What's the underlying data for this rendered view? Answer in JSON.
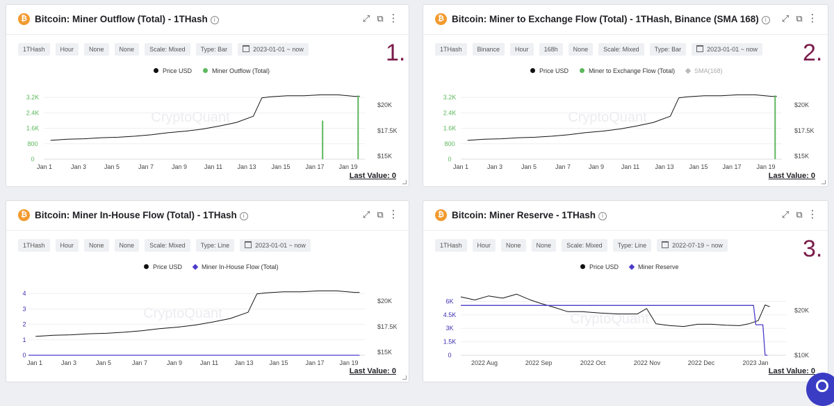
{
  "panels": [
    {
      "title": "Bitcoin: Miner Outflow (Total) - 1THash",
      "chips": [
        "1THash",
        "Hour",
        "None",
        "None",
        "Scale: Mixed",
        "Type: Bar"
      ],
      "date_chip": "2023-01-01 ~ now",
      "number_label": "1.",
      "legend": [
        {
          "label": "Price USD",
          "color": "#111111",
          "marker": "dot"
        },
        {
          "label": "Miner Outflow (Total)",
          "color": "#5cb85c",
          "marker": "dot"
        }
      ],
      "last_value": "Last Value: 0"
    },
    {
      "title": "Bitcoin: Miner to Exchange Flow (Total) - 1THash, Binance (SMA 168)",
      "chips": [
        "1THash",
        "Binance",
        "Hour",
        "168h",
        "None",
        "Scale: Mixed",
        "Type: Bar"
      ],
      "date_chip": "2023-01-01 ~ now",
      "number_label": "2.",
      "legend": [
        {
          "label": "Price USD",
          "color": "#111111",
          "marker": "dot"
        },
        {
          "label": "Miner to Exchange Flow (Total)",
          "color": "#5cb85c",
          "marker": "dot"
        },
        {
          "label": "SMA(168)",
          "color": "#bbbbbb",
          "marker": "diamond"
        }
      ],
      "last_value": "Last Value: 0"
    },
    {
      "title": "Bitcoin: Miner In-House Flow (Total) - 1THash",
      "chips": [
        "1THash",
        "Hour",
        "None",
        "None",
        "Scale: Mixed",
        "Type: Line"
      ],
      "date_chip": "2023-01-01 ~ now",
      "number_label": "",
      "legend": [
        {
          "label": "Price USD",
          "color": "#111111",
          "marker": "dot"
        },
        {
          "label": "Miner In-House Flow (Total)",
          "color": "#4b3bc9",
          "marker": "diamond"
        }
      ],
      "last_value": "Last Value: 0"
    },
    {
      "title": "Bitcoin: Miner Reserve - 1THash",
      "chips": [
        "1THash",
        "Hour",
        "None",
        "None",
        "Scale: Mixed",
        "Type: Line"
      ],
      "date_chip": "2022-07-19 ~ now",
      "number_label": "3.",
      "legend": [
        {
          "label": "Price USD",
          "color": "#111111",
          "marker": "dot"
        },
        {
          "label": "Miner Reserve",
          "color": "#4b3bc9",
          "marker": "diamond"
        }
      ],
      "last_value": "Last Value: 0"
    }
  ],
  "watermark": "CryptoQuant",
  "chart_data": [
    {
      "type": "bar",
      "x_ticks": [
        "Jan 1",
        "Jan 3",
        "Jan 5",
        "Jan 7",
        "Jan 9",
        "Jan 11",
        "Jan 13",
        "Jan 15",
        "Jan 17",
        "Jan 19"
      ],
      "y_left_ticks": [
        "0",
        "800",
        "1.6K",
        "2.4K",
        "3.2K"
      ],
      "y_left_range": [
        0,
        3600
      ],
      "y_right_ticks": [
        "$15K",
        "$17.5K",
        "$20K"
      ],
      "y_right_range": [
        14700,
        21500
      ],
      "x_range": [
        0.6,
        19.6
      ],
      "series": [
        {
          "name": "Price USD",
          "axis": "right",
          "type": "line",
          "color": "#111111",
          "x": [
            1,
            2,
            3,
            4,
            5,
            6,
            7,
            8,
            9,
            10,
            11,
            12,
            13,
            13.5,
            14,
            15,
            16,
            17,
            18,
            19,
            19.3
          ],
          "y": [
            16540,
            16650,
            16700,
            16800,
            16850,
            16950,
            17100,
            17300,
            17450,
            17650,
            17950,
            18300,
            18900,
            20700,
            20800,
            20900,
            20900,
            21000,
            21000,
            20850,
            20850
          ]
        },
        {
          "name": "Miner Outflow (Total)",
          "axis": "left",
          "type": "bar",
          "color": "#5cb85c",
          "x": [
            17.1,
            19.2
          ],
          "y": [
            2000,
            3300
          ]
        }
      ]
    },
    {
      "type": "bar",
      "x_ticks": [
        "Jan 1",
        "Jan 3",
        "Jan 5",
        "Jan 7",
        "Jan 9",
        "Jan 11",
        "Jan 13",
        "Jan 15",
        "Jan 17",
        "Jan 19"
      ],
      "y_left_ticks": [
        "0",
        "800",
        "1.6K",
        "2.4K",
        "3.2K"
      ],
      "y_left_range": [
        0,
        3600
      ],
      "y_right_ticks": [
        "$15K",
        "$17.5K",
        "$20K"
      ],
      "y_right_range": [
        14700,
        21500
      ],
      "x_range": [
        0.6,
        19.6
      ],
      "series": [
        {
          "name": "Price USD",
          "axis": "right",
          "type": "line",
          "color": "#111111",
          "x": [
            1,
            2,
            3,
            4,
            5,
            6,
            7,
            8,
            9,
            10,
            11,
            12,
            13,
            13.5,
            14,
            15,
            16,
            17,
            18,
            19,
            19.3
          ],
          "y": [
            16540,
            16650,
            16700,
            16800,
            16850,
            16950,
            17100,
            17300,
            17450,
            17650,
            17950,
            18300,
            18900,
            20700,
            20800,
            20900,
            20900,
            21000,
            21000,
            20850,
            20850
          ]
        },
        {
          "name": "Miner to Exchange Flow (Total)",
          "axis": "left",
          "type": "bar",
          "color": "#5cb85c",
          "x": [
            19.2
          ],
          "y": [
            3300
          ]
        }
      ]
    },
    {
      "type": "line",
      "x_ticks": [
        "Jan 1",
        "Jan 3",
        "Jan 5",
        "Jan 7",
        "Jan 9",
        "Jan 11",
        "Jan 13",
        "Jan 15",
        "Jan 17",
        "Jan 19"
      ],
      "y_left_ticks": [
        "0",
        "1",
        "2",
        "3",
        "4"
      ],
      "y_left_range": [
        0,
        4.5
      ],
      "y_right_ticks": [
        "$15K",
        "$17.5K",
        "$20K"
      ],
      "y_right_range": [
        14700,
        21500
      ],
      "x_range": [
        0.6,
        19.6
      ],
      "series": [
        {
          "name": "Price USD",
          "axis": "right",
          "type": "line",
          "color": "#111111",
          "x": [
            1,
            2,
            3,
            4,
            5,
            6,
            7,
            8,
            9,
            10,
            11,
            12,
            13,
            13.5,
            14,
            15,
            16,
            17,
            18,
            19,
            19.3
          ],
          "y": [
            16540,
            16650,
            16700,
            16800,
            16850,
            16950,
            17100,
            17300,
            17450,
            17650,
            17950,
            18300,
            18900,
            20700,
            20800,
            20900,
            20900,
            21000,
            21000,
            20850,
            20850
          ]
        },
        {
          "name": "Miner In-House Flow (Total)",
          "axis": "left",
          "type": "line",
          "color": "#4b3bc9",
          "x": [
            0.6,
            19.3
          ],
          "y": [
            0,
            0
          ]
        }
      ]
    },
    {
      "type": "line",
      "x_ticks": [
        "2022 Aug",
        "2022 Sep",
        "2022 Oct",
        "2022 Nov",
        "2022 Dec",
        "2023 Jan"
      ],
      "y_left_ticks": [
        "0",
        "1.5K",
        "3K",
        "4.5K",
        "6K"
      ],
      "y_left_range": [
        0,
        6500
      ],
      "y_right_ticks": [
        "$10K",
        "$20K"
      ],
      "y_right_range": [
        10000,
        23000
      ],
      "x_range": [
        0,
        7
      ],
      "series": [
        {
          "name": "Price USD",
          "axis": "right",
          "type": "line",
          "color": "#111111",
          "x": [
            0,
            0.3,
            0.6,
            0.9,
            1.2,
            1.5,
            1.7,
            2.0,
            2.3,
            2.6,
            3.0,
            3.4,
            3.8,
            4.0,
            4.2,
            4.5,
            4.8,
            5.1,
            5.4,
            5.7,
            6.0,
            6.2,
            6.4,
            6.55,
            6.65
          ],
          "y": [
            23000,
            22300,
            23200,
            22700,
            23600,
            22300,
            21600,
            20700,
            19700,
            19700,
            19400,
            19200,
            19200,
            20400,
            17000,
            16600,
            16400,
            16900,
            16900,
            16700,
            16600,
            17000,
            17700,
            21200,
            20800
          ]
        },
        {
          "name": "Miner Reserve",
          "axis": "left",
          "type": "line",
          "color": "#4b3bc9",
          "x": [
            0,
            6.3,
            6.35,
            6.5,
            6.55,
            6.6
          ],
          "y": [
            5550,
            5550,
            3400,
            3400,
            0,
            0
          ]
        }
      ]
    }
  ]
}
